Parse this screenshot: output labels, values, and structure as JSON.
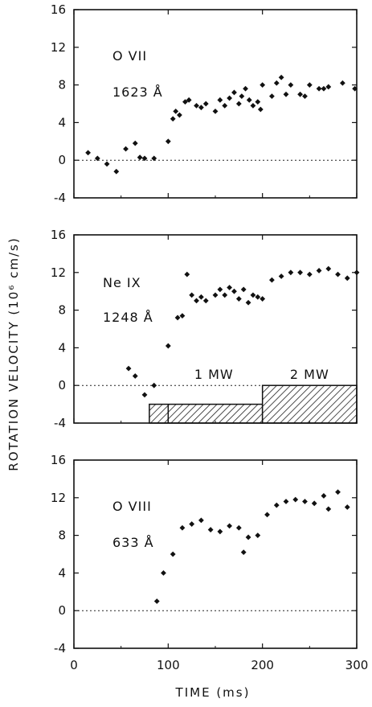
{
  "figure": {
    "y_axis_title": "ROTATION VELOCITY (10⁶ cm/s)",
    "x_axis_title": "TIME (ms)",
    "x_tick_labels": [
      "0",
      "100",
      "200",
      "300"
    ],
    "y_tick_labels": [
      "16",
      "12",
      "8",
      "4",
      "0",
      "-4"
    ]
  },
  "chart_data": [
    {
      "type": "scatter",
      "ion": "O VII",
      "wavelength": "1623 Å",
      "x": [
        15,
        25,
        35,
        45,
        55,
        65,
        70,
        75,
        85,
        100,
        105,
        108,
        112,
        118,
        122,
        130,
        135,
        140,
        150,
        155,
        160,
        165,
        170,
        175,
        178,
        182,
        186,
        190,
        195,
        198,
        200,
        210,
        215,
        220,
        225,
        230,
        240,
        245,
        250,
        260,
        265,
        270,
        285,
        298
      ],
      "y": [
        0.8,
        0.2,
        -0.4,
        -1.2,
        1.2,
        1.8,
        0.3,
        0.2,
        0.2,
        2.0,
        4.4,
        5.2,
        4.8,
        6.2,
        6.4,
        5.8,
        5.6,
        6.0,
        5.2,
        6.4,
        5.8,
        6.6,
        7.2,
        6.0,
        6.8,
        7.6,
        6.4,
        5.8,
        6.2,
        5.4,
        8.0,
        6.8,
        8.2,
        8.8,
        7.0,
        8.0,
        7.0,
        6.8,
        8.0,
        7.6,
        7.6,
        7.8,
        8.2,
        7.6
      ],
      "xlim": [
        0,
        300
      ],
      "ylim": [
        -4,
        16
      ]
    },
    {
      "type": "scatter",
      "ion": "Ne IX",
      "wavelength": "1248 Å",
      "x": [
        58,
        65,
        75,
        85,
        100,
        110,
        115,
        120,
        125,
        130,
        135,
        140,
        150,
        155,
        160,
        165,
        170,
        175,
        180,
        185,
        190,
        195,
        200,
        210,
        220,
        230,
        240,
        250,
        260,
        270,
        280,
        290,
        300
      ],
      "y": [
        1.8,
        1.0,
        -1.0,
        0.0,
        4.2,
        7.2,
        7.4,
        11.8,
        9.6,
        9.0,
        9.4,
        9.0,
        9.6,
        10.2,
        9.6,
        10.4,
        10.0,
        9.2,
        10.2,
        8.8,
        9.6,
        9.4,
        9.2,
        11.2,
        11.6,
        12.0,
        12.0,
        11.8,
        12.2,
        12.4,
        11.8,
        11.4,
        12.0
      ],
      "xlim": [
        0,
        300
      ],
      "ylim": [
        -4,
        16
      ],
      "heating": [
        {
          "label": "1 MW",
          "x_start": 80,
          "x_end": 200,
          "y_top": -2
        },
        {
          "label": "2 MW",
          "x_start": 200,
          "x_end": 300,
          "y_top": 0
        }
      ]
    },
    {
      "type": "scatter",
      "ion": "O VIII",
      "wavelength": "633 Å",
      "x": [
        88,
        95,
        105,
        115,
        125,
        135,
        145,
        155,
        165,
        175,
        180,
        185,
        195,
        205,
        215,
        225,
        235,
        245,
        255,
        265,
        270,
        280,
        290
      ],
      "y": [
        1.0,
        4.0,
        6.0,
        8.8,
        9.2,
        9.6,
        8.6,
        8.4,
        9.0,
        8.8,
        6.2,
        7.8,
        8.0,
        10.2,
        11.2,
        11.6,
        11.8,
        11.6,
        11.4,
        12.2,
        10.8,
        12.6,
        11.0
      ],
      "xlim": [
        0,
        300
      ],
      "ylim": [
        -4,
        16
      ]
    }
  ]
}
